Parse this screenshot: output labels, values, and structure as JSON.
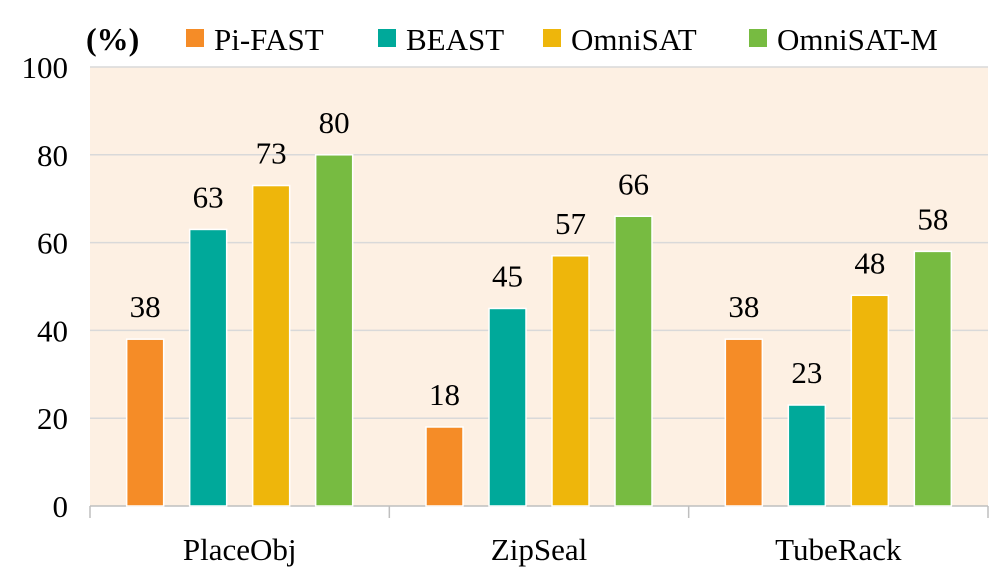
{
  "chart_data": {
    "type": "bar",
    "unit_label": "(%)",
    "categories": [
      "PlaceObj",
      "ZipSeal",
      "TubeRack"
    ],
    "series": [
      {
        "name": "Pi-FAST",
        "color": "#F58C27",
        "values": [
          38,
          18,
          38
        ]
      },
      {
        "name": "BEAST",
        "color": "#00A99A",
        "values": [
          63,
          45,
          23
        ]
      },
      {
        "name": "OmniSAT",
        "color": "#EEB60B",
        "values": [
          73,
          57,
          48
        ]
      },
      {
        "name": "OmniSAT-M",
        "color": "#77BB41",
        "values": [
          80,
          66,
          58
        ]
      }
    ],
    "ylim": [
      0,
      100
    ],
    "yticks": [
      0,
      20,
      40,
      60,
      80,
      100
    ],
    "grid": true,
    "legend_position": "top",
    "plot_background": "#FDF0E3",
    "grid_color": "#D9D9D9"
  }
}
